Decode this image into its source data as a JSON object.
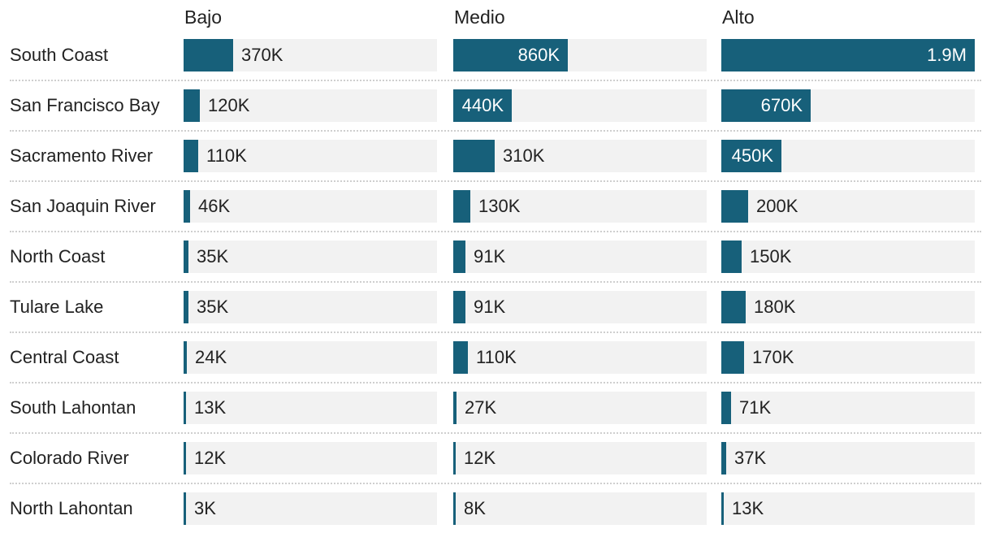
{
  "chart_data": {
    "type": "bar",
    "title": "",
    "xlabel": "",
    "ylabel": "",
    "bar_color": "#17607a",
    "track_color": "#f2f2f2",
    "xlim": [
      0,
      1900000
    ],
    "panels": [
      "Bajo",
      "Medio",
      "Alto"
    ],
    "categories": [
      "South Coast",
      "San Francisco Bay",
      "Sacramento River",
      "San Joaquin River",
      "North Coast",
      "Tulare Lake",
      "Central Coast",
      "South Lahontan",
      "Colorado River",
      "North Lahontan"
    ],
    "series": [
      {
        "name": "Bajo",
        "values": [
          370000,
          120000,
          110000,
          46000,
          35000,
          35000,
          24000,
          13000,
          12000,
          3000
        ],
        "labels": [
          "370K",
          "120K",
          "110K",
          "46K",
          "35K",
          "35K",
          "24K",
          "13K",
          "12K",
          "3K"
        ]
      },
      {
        "name": "Medio",
        "values": [
          860000,
          440000,
          310000,
          130000,
          91000,
          91000,
          110000,
          27000,
          12000,
          8000
        ],
        "labels": [
          "860K",
          "440K",
          "310K",
          "130K",
          "91K",
          "91K",
          "110K",
          "27K",
          "12K",
          "8K"
        ]
      },
      {
        "name": "Alto",
        "values": [
          1900000,
          670000,
          450000,
          200000,
          150000,
          180000,
          170000,
          71000,
          37000,
          13000
        ],
        "labels": [
          "1.9M",
          "670K",
          "450K",
          "200K",
          "150K",
          "180K",
          "170K",
          "71K",
          "37K",
          "13K"
        ]
      }
    ]
  }
}
